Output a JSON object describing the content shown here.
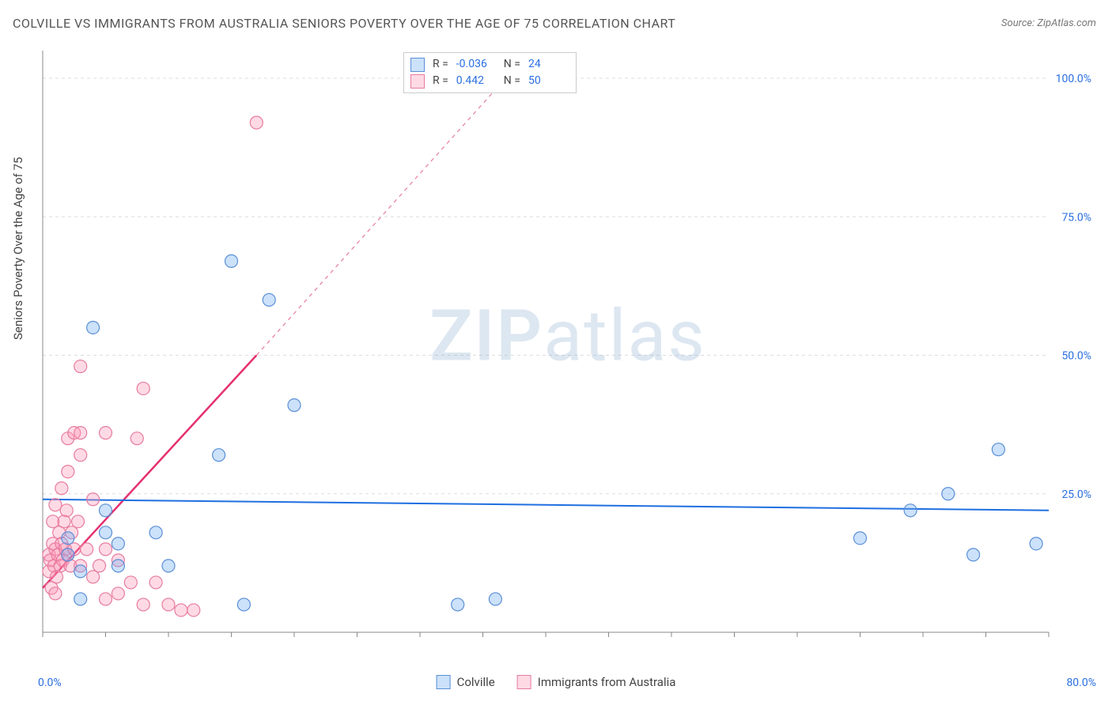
{
  "title": "COLVILLE VS IMMIGRANTS FROM AUSTRALIA SENIORS POVERTY OVER THE AGE OF 75 CORRELATION CHART",
  "source": "Source: ZipAtlas.com",
  "y_axis_label": "Seniors Poverty Over the Age of 75",
  "watermark_prefix": "ZIP",
  "watermark_suffix": "atlas",
  "chart": {
    "type": "scatter",
    "background_color": "#ffffff",
    "plot_border_color": "#888888",
    "grid_color": "#dddddd",
    "grid_dash": "4,4",
    "xlim": [
      0,
      80
    ],
    "ylim": [
      0,
      105
    ],
    "y_ticks": [
      25,
      50,
      75,
      100
    ],
    "y_tick_labels": [
      "25.0%",
      "50.0%",
      "75.0%",
      "100.0%"
    ],
    "x_tick_start": "0.0%",
    "x_tick_end": "80.0%",
    "tick_label_color": "#2a6fe0",
    "tick_fontsize": 14,
    "marker_radius": 8,
    "marker_stroke_width": 1.2,
    "series": [
      {
        "name": "Colville",
        "fill_color": "rgba(110,170,240,0.35)",
        "stroke_color": "#5a8fd6",
        "R": "-0.036",
        "N": "24",
        "points": [
          [
            2,
            14
          ],
          [
            2,
            17
          ],
          [
            3,
            6
          ],
          [
            3,
            11
          ],
          [
            4,
            55
          ],
          [
            5,
            18
          ],
          [
            5,
            22
          ],
          [
            6,
            12
          ],
          [
            6,
            16
          ],
          [
            9,
            18
          ],
          [
            10,
            12
          ],
          [
            14,
            32
          ],
          [
            15,
            67
          ],
          [
            16,
            5
          ],
          [
            18,
            60
          ],
          [
            20,
            41
          ],
          [
            33,
            5
          ],
          [
            36,
            6
          ],
          [
            65,
            17
          ],
          [
            69,
            22
          ],
          [
            72,
            25
          ],
          [
            74,
            14
          ],
          [
            76,
            33
          ],
          [
            79,
            16
          ]
        ],
        "trend": {
          "x1": 0,
          "y1": 24,
          "x2": 80,
          "y2": 22,
          "color": "#1f6fe0",
          "width": 2,
          "dash": ""
        }
      },
      {
        "name": "Immigrants from Australia",
        "fill_color": "rgba(255,150,180,0.35)",
        "stroke_color": "#e77ba0",
        "R": "0.442",
        "N": "50",
        "points": [
          [
            0.5,
            11
          ],
          [
            0.5,
            14
          ],
          [
            0.6,
            13
          ],
          [
            0.7,
            8
          ],
          [
            0.8,
            16
          ],
          [
            0.8,
            20
          ],
          [
            0.9,
            12
          ],
          [
            1,
            7
          ],
          [
            1,
            15
          ],
          [
            1,
            23
          ],
          [
            1.1,
            10
          ],
          [
            1.2,
            14
          ],
          [
            1.3,
            18
          ],
          [
            1.4,
            12
          ],
          [
            1.5,
            16
          ],
          [
            1.5,
            26
          ],
          [
            1.6,
            13
          ],
          [
            1.7,
            20
          ],
          [
            1.8,
            15
          ],
          [
            1.9,
            22
          ],
          [
            2,
            14
          ],
          [
            2,
            29
          ],
          [
            2,
            35
          ],
          [
            2.2,
            12
          ],
          [
            2.3,
            18
          ],
          [
            2.5,
            15
          ],
          [
            2.5,
            36
          ],
          [
            2.8,
            20
          ],
          [
            3,
            12
          ],
          [
            3,
            32
          ],
          [
            3,
            36
          ],
          [
            3,
            48
          ],
          [
            3.5,
            15
          ],
          [
            4,
            10
          ],
          [
            4,
            24
          ],
          [
            4.5,
            12
          ],
          [
            5,
            6
          ],
          [
            5,
            15
          ],
          [
            5,
            36
          ],
          [
            6,
            7
          ],
          [
            6,
            13
          ],
          [
            7,
            9
          ],
          [
            7.5,
            35
          ],
          [
            8,
            5
          ],
          [
            8,
            44
          ],
          [
            9,
            9
          ],
          [
            10,
            5
          ],
          [
            11,
            4
          ],
          [
            12,
            4
          ],
          [
            17,
            92
          ]
        ],
        "trend_solid": {
          "x1": 0,
          "y1": 8,
          "x2": 17,
          "y2": 50,
          "color": "#e53070",
          "width": 2.5
        },
        "trend_dash": {
          "x1": 17,
          "y1": 50,
          "x2": 38,
          "y2": 103,
          "color": "#e77ba0",
          "width": 1.2,
          "dash": "5,5"
        }
      }
    ]
  },
  "stats_legend": {
    "label_R": "R =",
    "label_N": "N ="
  },
  "bottom_legend": {
    "a": "Colville",
    "b": "Immigrants from Australia"
  }
}
